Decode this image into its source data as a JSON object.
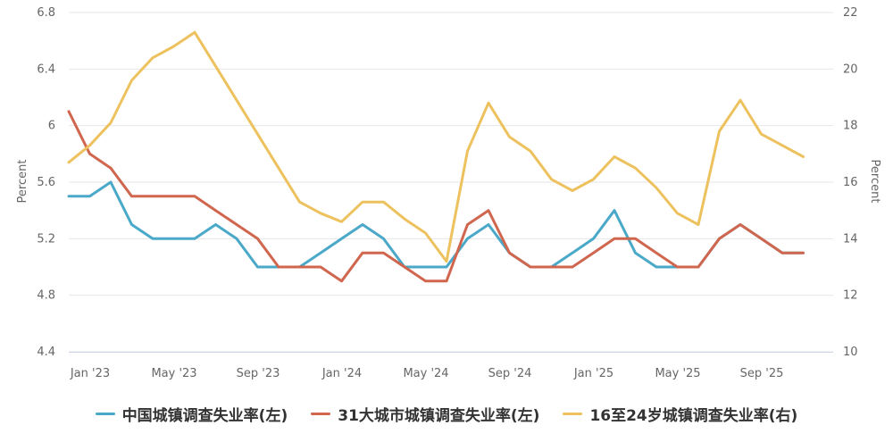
{
  "chart_data": {
    "type": "line",
    "x": [
      "2023-01",
      "2023-02",
      "2023-03",
      "2023-04",
      "2023-05",
      "2023-06",
      "2023-07",
      "2023-08",
      "2023-09",
      "2023-10",
      "2023-11",
      "2023-12",
      "2024-01",
      "2024-02",
      "2024-03",
      "2024-04",
      "2024-05",
      "2024-06",
      "2024-07",
      "2024-08",
      "2024-09",
      "2024-10",
      "2024-11",
      "2024-12",
      "2025-01",
      "2025-02",
      "2025-03",
      "2025-04",
      "2025-05",
      "2025-06",
      "2025-07",
      "2025-08",
      "2025-09",
      "2025-10",
      "2025-11",
      "2025-12"
    ],
    "x_tick_labels": [
      {
        "x": "2023-01",
        "label": "Jan '23"
      },
      {
        "x": "2023-05",
        "label": "May '23"
      },
      {
        "x": "2023-09",
        "label": "Sep '23"
      },
      {
        "x": "2024-01",
        "label": "Jan '24"
      },
      {
        "x": "2024-05",
        "label": "May '24"
      },
      {
        "x": "2024-09",
        "label": "Sep '24"
      },
      {
        "x": "2025-01",
        "label": "Jan '25"
      },
      {
        "x": "2025-05",
        "label": "May '25"
      },
      {
        "x": "2025-09",
        "label": "Sep '25"
      }
    ],
    "y_left": {
      "label": "Percent",
      "range": [
        4.4,
        6.8
      ],
      "ticks": [
        "4.4",
        "4.8",
        "5.2",
        "5.6",
        "6",
        "6.4",
        "6.8"
      ]
    },
    "y_right": {
      "label": "Percent",
      "range": [
        10,
        22
      ],
      "ticks": [
        "10",
        "12",
        "14",
        "16",
        "18",
        "20",
        "22"
      ]
    },
    "grid": true,
    "legend_position": "bottom",
    "series": [
      {
        "name": "中国城镇调查失业率(左)",
        "axis": "left",
        "color": "#4aa8c8",
        "values": [
          5.5,
          5.5,
          5.6,
          5.3,
          5.2,
          5.2,
          5.2,
          5.3,
          5.2,
          5.0,
          5.0,
          5.0,
          5.1,
          5.2,
          5.3,
          5.2,
          5.0,
          5.0,
          5.0,
          5.2,
          5.3,
          5.1,
          5.0,
          5.0,
          5.1,
          5.2,
          5.4,
          5.1,
          5.0,
          5.0,
          5.0,
          5.2,
          5.3,
          5.2,
          5.1,
          5.1
        ]
      },
      {
        "name": "31大城市城镇调查失业率(左)",
        "axis": "left",
        "color": "#d0664e",
        "values": [
          6.1,
          5.8,
          5.7,
          5.5,
          5.5,
          5.5,
          5.5,
          5.4,
          5.3,
          5.2,
          5.0,
          5.0,
          5.0,
          4.9,
          5.1,
          5.1,
          5.0,
          4.9,
          4.9,
          5.3,
          5.4,
          5.1,
          5.0,
          5.0,
          5.0,
          5.1,
          5.2,
          5.2,
          5.1,
          5.0,
          5.0,
          5.2,
          5.3,
          5.2,
          5.1,
          5.1
        ]
      },
      {
        "name": "16至24岁城镇调查失业率(右)",
        "axis": "right",
        "color": "#edc25e",
        "values": [
          16.7,
          17.3,
          18.1,
          19.6,
          20.4,
          20.8,
          21.3,
          20.1,
          18.9,
          17.7,
          16.5,
          15.3,
          14.9,
          14.6,
          15.3,
          15.3,
          14.7,
          14.2,
          13.2,
          17.1,
          18.8,
          17.6,
          17.1,
          16.1,
          15.7,
          16.1,
          16.9,
          16.5,
          15.8,
          14.9,
          14.5,
          17.8,
          18.9,
          17.7,
          17.3,
          16.9
        ]
      }
    ]
  }
}
